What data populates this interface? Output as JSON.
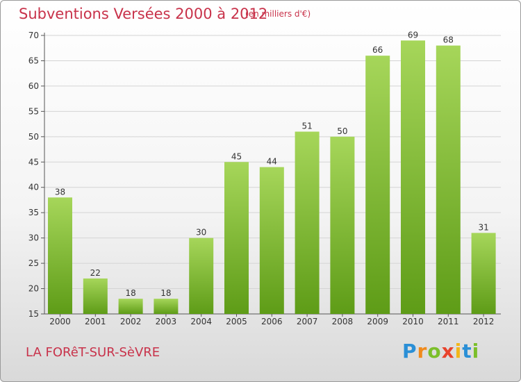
{
  "header": {
    "title": "Subventions Versées 2000 à 2012",
    "unit": "(en milliers d'€)"
  },
  "footer": {
    "commune": "LA FORêT-SUR-SèVRE",
    "logo": "Proxiti"
  },
  "colors": {
    "title": "#c8324a",
    "bar_light": "#a6d65a",
    "bar_dark": "#5e9c17"
  },
  "chart_data": {
    "type": "bar",
    "title": "Subventions Versées 2000 à 2012",
    "xlabel": "",
    "ylabel": "",
    "categories": [
      "2000",
      "2001",
      "2002",
      "2003",
      "2004",
      "2005",
      "2006",
      "2007",
      "2008",
      "2009",
      "2010",
      "2011",
      "2012"
    ],
    "values": [
      38,
      22,
      18,
      18,
      30,
      45,
      44,
      51,
      50,
      66,
      69,
      68,
      31
    ],
    "ylim": [
      15,
      70
    ],
    "yticks": [
      15,
      20,
      25,
      30,
      35,
      40,
      45,
      50,
      55,
      60,
      65,
      70
    ],
    "grid": true,
    "legend": "none"
  }
}
